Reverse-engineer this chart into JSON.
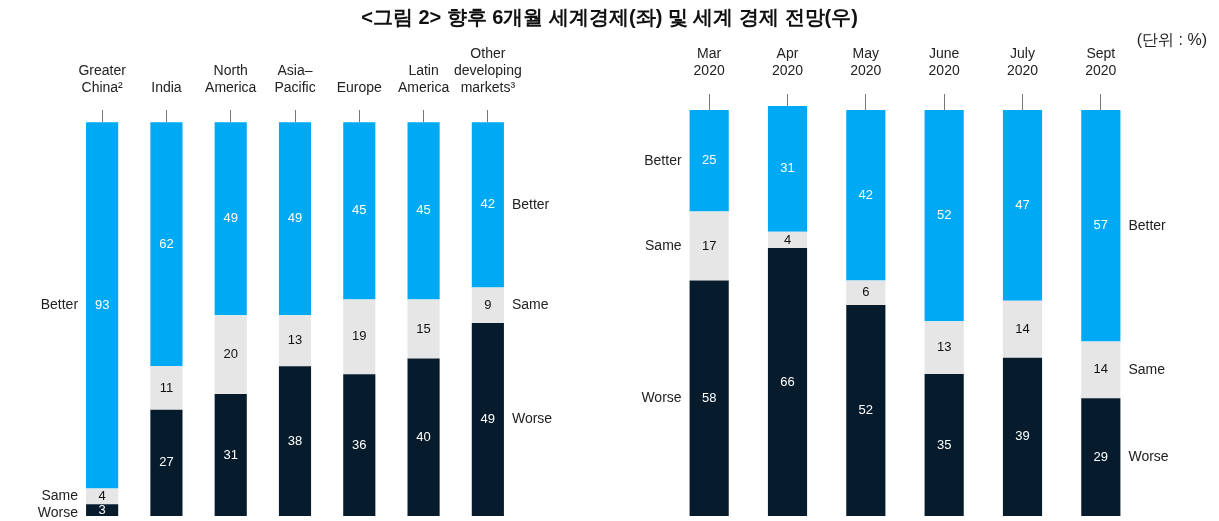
{
  "chart_data": [
    {
      "type": "bar",
      "title": "<그림 2> 향후 6개월 세계경제(좌) 및 세계 경제 전망(우)",
      "categories": [
        "Greater China²",
        "India",
        "North America",
        "Asia–Pacific",
        "Europe",
        "Latin America",
        "Other developing markets³"
      ],
      "data_labels": true,
      "stacked": true,
      "series": [
        {
          "name": "Worse",
          "color": "#061c2c",
          "values": [
            3,
            27,
            31,
            38,
            36,
            40,
            49
          ]
        },
        {
          "name": "Same",
          "color": "#e6e6e6",
          "values": [
            4,
            11,
            20,
            13,
            19,
            15,
            9
          ]
        },
        {
          "name": "Better",
          "color": "#00a9f4",
          "values": [
            93,
            62,
            49,
            49,
            45,
            45,
            42
          ]
        }
      ]
    },
    {
      "type": "bar",
      "annotations": [
        "(단위 : %)"
      ],
      "categories": [
        "Mar 2020",
        "Apr 2020",
        "May 2020",
        "June 2020",
        "July 2020",
        "Sept 2020"
      ],
      "data_labels": true,
      "stacked": true,
      "series": [
        {
          "name": "Worse",
          "color": "#061c2c",
          "values": [
            58,
            66,
            52,
            35,
            39,
            29
          ]
        },
        {
          "name": "Same",
          "color": "#e6e6e6",
          "values": [
            17,
            4,
            6,
            13,
            14,
            14
          ]
        },
        {
          "name": "Better",
          "color": "#00a9f4",
          "values": [
            25,
            31,
            42,
            52,
            47,
            57
          ]
        }
      ]
    }
  ]
}
